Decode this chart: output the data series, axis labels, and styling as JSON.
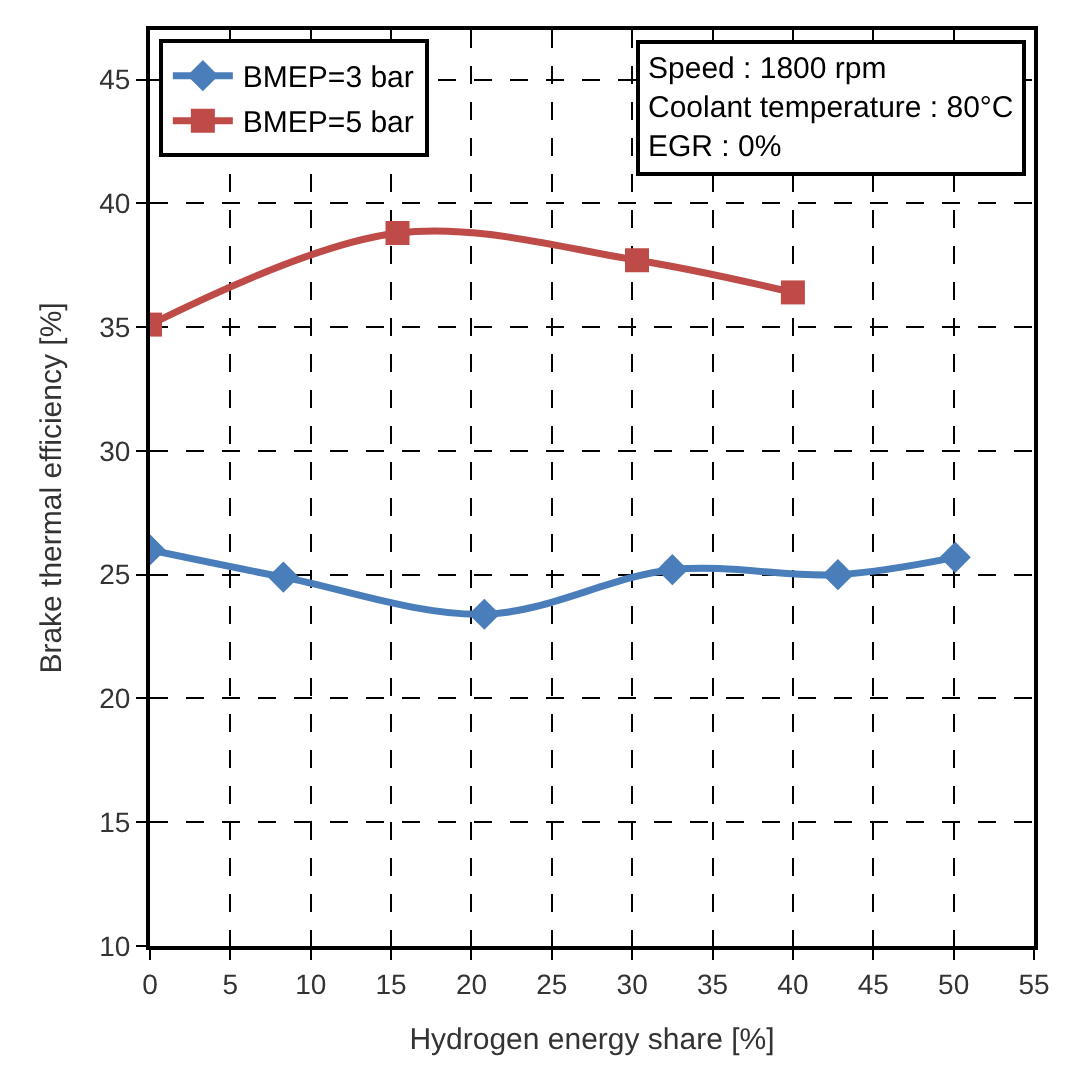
{
  "chart_data": {
    "type": "line",
    "xlabel": "Hydrogen energy share [%]",
    "ylabel": "Brake thermal efficiency [%]",
    "series": [
      {
        "name": "BMEP=3 bar",
        "color": "#4a7ebb",
        "marker": "diamond",
        "x": [
          0,
          8.3,
          20.8,
          32.5,
          42.8,
          50.1
        ],
        "values": [
          26.0,
          24.9,
          23.4,
          25.2,
          25.0,
          25.7
        ]
      },
      {
        "name": "BMEP=5 bar",
        "color": "#be4b48",
        "marker": "square",
        "x": [
          0,
          15.4,
          30.3,
          40.0
        ],
        "values": [
          35.1,
          38.8,
          37.7,
          36.4
        ]
      }
    ],
    "xlim": [
      0,
      55
    ],
    "xticks": [
      0,
      5,
      10,
      15,
      20,
      25,
      30,
      35,
      40,
      45,
      50,
      55
    ],
    "ylim": [
      10,
      47
    ],
    "yticks": [
      10,
      15,
      20,
      25,
      30,
      35,
      40,
      45
    ],
    "grid": true,
    "line_style": "solid",
    "legend": "top left",
    "annotations": [
      "Speed : 1800 rpm\nCoolant temperature : 80°C\nEGR : 0%"
    ]
  }
}
